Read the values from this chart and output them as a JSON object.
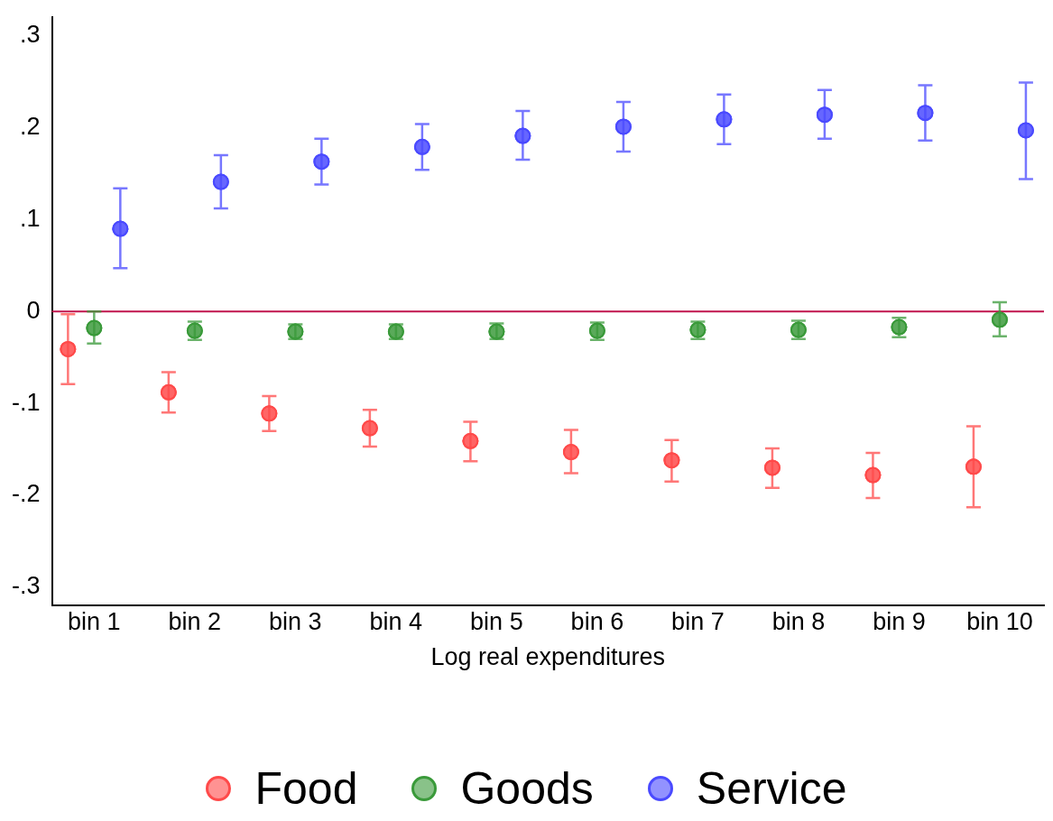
{
  "chart_data": {
    "type": "scatter",
    "xlabel": "Log real expenditures",
    "categories": [
      "bin 1",
      "bin 2",
      "bin 3",
      "bin 4",
      "bin 5",
      "bin 6",
      "bin 7",
      "bin 8",
      "bin 9",
      "bin 10"
    ],
    "ylim": [
      -0.32,
      0.32
    ],
    "yticks": [
      {
        "value": -0.3,
        "label": "-.3"
      },
      {
        "value": -0.2,
        "label": "-.2"
      },
      {
        "value": -0.1,
        "label": "-.1"
      },
      {
        "value": 0,
        "label": "0"
      },
      {
        "value": 0.1,
        "label": ".1"
      },
      {
        "value": 0.2,
        "label": ".2"
      },
      {
        "value": 0.3,
        "label": ".3"
      }
    ],
    "grid": false,
    "legend": "bottom",
    "marker": "circle",
    "ref_lines": [
      {
        "axis": "y",
        "value": 0,
        "color": "#c0144c"
      }
    ],
    "series": [
      {
        "name": "Food",
        "color": "#ff4a4a",
        "values": [
          -0.041,
          -0.088,
          -0.111,
          -0.127,
          -0.141,
          -0.153,
          -0.162,
          -0.17,
          -0.178,
          -0.169
        ],
        "errors": [
          [
            -0.079,
            -0.003
          ],
          [
            -0.11,
            -0.066
          ],
          [
            -0.13,
            -0.092
          ],
          [
            -0.147,
            -0.107
          ],
          [
            -0.163,
            -0.12
          ],
          [
            -0.176,
            -0.129
          ],
          [
            -0.185,
            -0.14
          ],
          [
            -0.192,
            -0.149
          ],
          [
            -0.203,
            -0.154
          ],
          [
            -0.213,
            -0.125
          ]
        ]
      },
      {
        "name": "Goods",
        "color": "#3a9a3a",
        "values": [
          -0.018,
          -0.021,
          -0.022,
          -0.022,
          -0.022,
          -0.021,
          -0.02,
          -0.02,
          -0.017,
          -0.009
        ],
        "errors": [
          [
            -0.035,
            0.0
          ],
          [
            -0.031,
            -0.011
          ],
          [
            -0.03,
            -0.014
          ],
          [
            -0.03,
            -0.014
          ],
          [
            -0.03,
            -0.013
          ],
          [
            -0.031,
            -0.012
          ],
          [
            -0.03,
            -0.011
          ],
          [
            -0.03,
            -0.01
          ],
          [
            -0.028,
            -0.007
          ],
          [
            -0.027,
            0.01
          ]
        ]
      },
      {
        "name": "Service",
        "color": "#4a4aff",
        "values": [
          0.09,
          0.141,
          0.163,
          0.179,
          0.191,
          0.201,
          0.209,
          0.214,
          0.216,
          0.197
        ],
        "errors": [
          [
            0.047,
            0.134
          ],
          [
            0.112,
            0.17
          ],
          [
            0.138,
            0.188
          ],
          [
            0.154,
            0.204
          ],
          [
            0.165,
            0.218
          ],
          [
            0.174,
            0.228
          ],
          [
            0.182,
            0.236
          ],
          [
            0.188,
            0.241
          ],
          [
            0.186,
            0.246
          ],
          [
            0.144,
            0.249
          ]
        ]
      }
    ]
  }
}
